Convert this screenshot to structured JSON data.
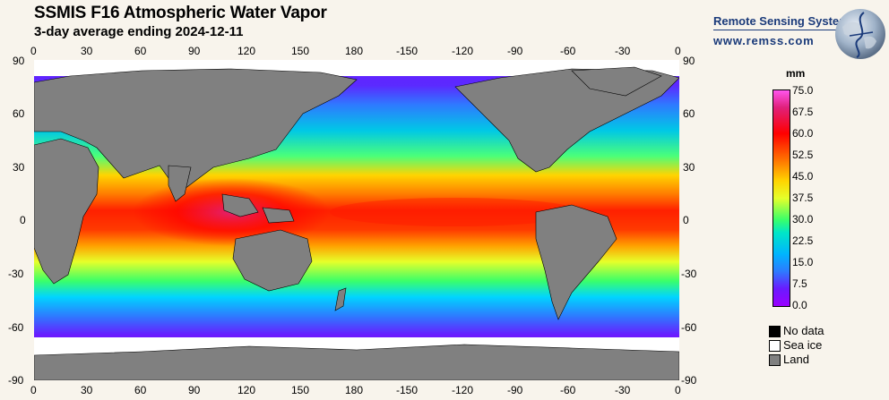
{
  "header": {
    "title": "SSMIS F16 Atmospheric Water Vapor",
    "subtitle": "3-day average ending 2024-12-11"
  },
  "brand": {
    "name": "Remote Sensing Systems",
    "url": "www.remss.com",
    "logo_icon": "globe-logo-icon"
  },
  "axes": {
    "x_labels": [
      "0",
      "30",
      "60",
      "90",
      "120",
      "150",
      "180",
      "-150",
      "-120",
      "-90",
      "-60",
      "-30",
      "0"
    ],
    "y_labels": [
      "90",
      "60",
      "30",
      "0",
      "-30",
      "-60",
      "-90"
    ]
  },
  "colorbar": {
    "unit": "mm",
    "labels": [
      "75.0",
      "67.5",
      "60.0",
      "52.5",
      "45.0",
      "37.5",
      "30.0",
      "22.5",
      "15.0",
      "7.5",
      "0.0"
    ],
    "min": 0,
    "max": 75,
    "colors_top_to_bottom": [
      "#ff55ee",
      "#e0207a",
      "#ff0000",
      "#ff7a00",
      "#ffd400",
      "#e6ff2a",
      "#3aff6a",
      "#00e6c8",
      "#00b4ff",
      "#2e7aff",
      "#6a1aff",
      "#9a00ff"
    ]
  },
  "legend_key": [
    {
      "label": "No data",
      "color": "#000000"
    },
    {
      "label": "Sea ice",
      "color": "#ffffff"
    },
    {
      "label": "Land",
      "color": "#808080"
    }
  ]
}
